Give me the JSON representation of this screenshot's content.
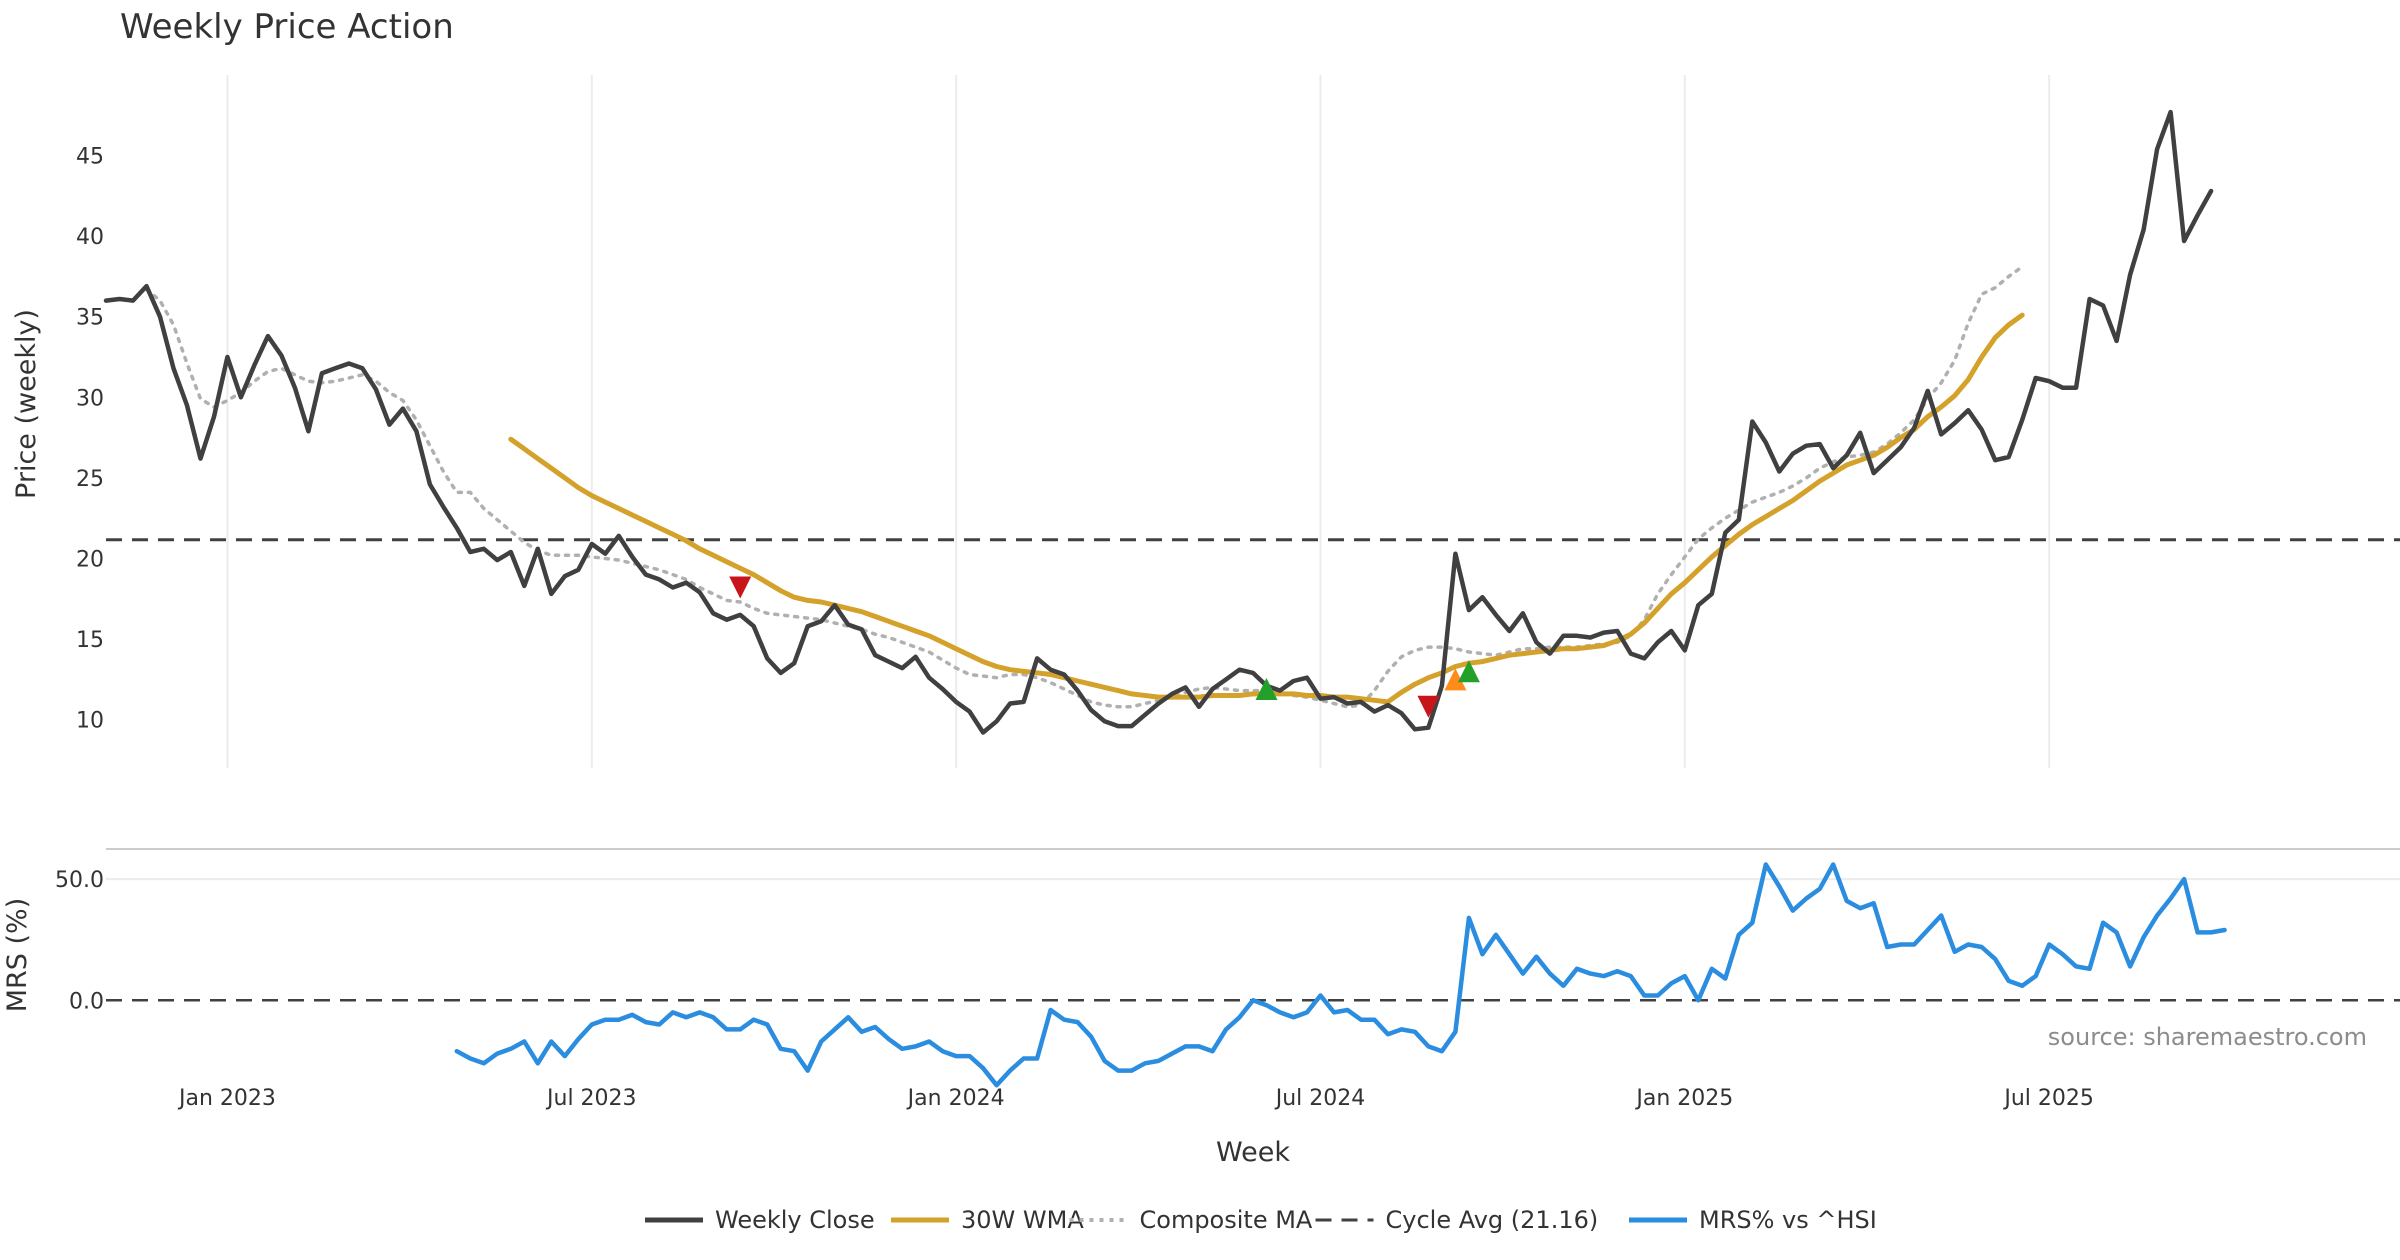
{
  "chart_data": [
    {
      "type": "line",
      "title": "Weekly Price Action",
      "ylabel": "Price (weekly)",
      "xlabel": "Week",
      "ylim": [
        7,
        50
      ],
      "yticks": [
        10,
        15,
        20,
        25,
        30,
        35,
        40,
        45
      ],
      "xlim": [
        0,
        170
      ],
      "x_ticks": [
        {
          "x": 9,
          "label": "Jan 2023"
        },
        {
          "x": 36,
          "label": "Jul 2023"
        },
        {
          "x": 63,
          "label": "Jan 2024"
        },
        {
          "x": 90,
          "label": "Jul 2024"
        },
        {
          "x": 117,
          "label": "Jan 2025"
        },
        {
          "x": 144,
          "label": "Jul 2025"
        }
      ],
      "hline": {
        "name": "Cycle Avg (21.16)",
        "value": 21.16
      },
      "series": [
        {
          "name": "Weekly Close",
          "color": "#404040",
          "start": 0,
          "values": [
            36.0,
            36.1,
            36.0,
            36.9,
            35.0,
            31.8,
            29.5,
            26.2,
            28.8,
            32.5,
            30.0,
            32.0,
            33.8,
            32.6,
            30.6,
            27.9,
            31.5,
            31.8,
            32.1,
            31.8,
            30.5,
            28.3,
            29.3,
            27.9,
            24.6,
            23.2,
            21.9,
            20.4,
            20.6,
            19.9,
            20.4,
            18.3,
            20.6,
            17.8,
            18.9,
            19.3,
            20.9,
            20.3,
            21.4,
            20.1,
            19.0,
            18.7,
            18.2,
            18.5,
            17.9,
            16.6,
            16.2,
            16.5,
            15.8,
            13.8,
            12.9,
            13.5,
            15.8,
            16.1,
            17.1,
            15.9,
            15.6,
            14.0,
            13.6,
            13.2,
            13.9,
            12.6,
            11.9,
            11.1,
            10.5,
            9.2,
            9.9,
            11.0,
            11.1,
            13.8,
            13.1,
            12.8,
            11.8,
            10.6,
            9.9,
            9.6,
            9.6,
            10.3,
            11.0,
            11.6,
            12.0,
            10.8,
            11.9,
            12.5,
            13.1,
            12.9,
            12.1,
            11.8,
            12.4,
            12.6,
            11.3,
            11.4,
            11.0,
            11.1,
            10.5,
            10.9,
            10.4,
            9.4,
            9.5,
            12.1,
            20.3,
            16.8,
            17.6,
            16.5,
            15.5,
            16.6,
            14.8,
            14.1,
            15.2,
            15.2,
            15.1,
            15.4,
            15.5,
            14.1,
            13.8,
            14.8,
            15.5,
            14.3,
            17.1,
            17.8,
            21.6,
            22.4,
            28.5,
            27.2,
            25.4,
            26.5,
            27.0,
            27.1,
            25.6,
            26.4,
            27.8,
            25.3,
            26.1,
            26.9,
            28.1,
            30.4,
            27.7,
            28.4,
            29.2,
            28.0,
            26.1,
            26.3,
            28.6,
            31.2,
            31.0,
            30.6,
            30.6,
            36.1,
            35.7,
            33.5,
            37.6,
            40.4,
            45.4,
            47.7,
            39.7,
            41.3,
            42.8
          ]
        },
        {
          "name": "30W WMA",
          "color": "#d4a12a",
          "start": 30,
          "values": [
            27.4,
            26.8,
            26.2,
            25.6,
            25.0,
            24.4,
            23.9,
            23.5,
            23.1,
            22.7,
            22.3,
            21.9,
            21.5,
            21.1,
            20.6,
            20.2,
            19.8,
            19.4,
            19.0,
            18.5,
            18.0,
            17.6,
            17.4,
            17.3,
            17.1,
            16.9,
            16.7,
            16.4,
            16.1,
            15.8,
            15.5,
            15.2,
            14.8,
            14.4,
            14.0,
            13.6,
            13.3,
            13.1,
            13.0,
            12.9,
            12.8,
            12.6,
            12.4,
            12.2,
            12.0,
            11.8,
            11.6,
            11.5,
            11.4,
            11.4,
            11.4,
            11.4,
            11.5,
            11.5,
            11.5,
            11.6,
            11.6,
            11.6,
            11.6,
            11.5,
            11.5,
            11.4,
            11.4,
            11.3,
            11.2,
            11.1,
            11.7,
            12.2,
            12.6,
            12.9,
            13.3,
            13.5,
            13.6,
            13.8,
            14.0,
            14.1,
            14.2,
            14.3,
            14.4,
            14.4,
            14.5,
            14.6,
            14.9,
            15.3,
            16.0,
            16.9,
            17.8,
            18.5,
            19.3,
            20.1,
            20.8,
            21.5,
            22.1,
            22.6,
            23.1,
            23.6,
            24.2,
            24.8,
            25.3,
            25.8,
            26.1,
            26.4,
            26.9,
            27.5,
            28.0,
            28.8,
            29.4,
            30.1,
            31.1,
            32.5,
            33.7,
            34.5,
            35.1
          ]
        },
        {
          "name": "Composite MA",
          "color": "#b0b0b0",
          "start": 3,
          "values": [
            36.7,
            36.0,
            34.5,
            32.1,
            29.9,
            29.4,
            29.8,
            30.3,
            31.0,
            31.6,
            31.8,
            31.4,
            31.0,
            30.9,
            31.0,
            31.2,
            31.4,
            31.0,
            30.3,
            29.8,
            28.6,
            27.0,
            25.4,
            24.1,
            24.1,
            23.1,
            22.4,
            21.7,
            21.0,
            20.5,
            20.2,
            20.2,
            20.2,
            20.1,
            20.0,
            19.9,
            19.7,
            19.5,
            19.3,
            19.0,
            18.7,
            18.2,
            17.8,
            17.4,
            17.3,
            16.9,
            16.6,
            16.5,
            16.4,
            16.3,
            16.2,
            16.0,
            15.8,
            15.6,
            15.3,
            15.1,
            14.8,
            14.5,
            14.2,
            13.7,
            13.2,
            12.8,
            12.7,
            12.6,
            12.8,
            12.8,
            12.6,
            12.3,
            11.9,
            11.5,
            11.1,
            10.9,
            10.8,
            10.8,
            11.0,
            11.2,
            11.4,
            11.7,
            11.9,
            12.0,
            11.9,
            11.8,
            11.8,
            11.8,
            11.7,
            11.5,
            11.4,
            11.2,
            11.0,
            10.8,
            10.9,
            11.8,
            13.0,
            13.9,
            14.3,
            14.5,
            14.5,
            14.4,
            14.2,
            14.1,
            14.0,
            14.2,
            14.4,
            14.4,
            14.5,
            14.5,
            14.5,
            14.6,
            14.7,
            14.8,
            15.2,
            16.2,
            17.8,
            19.0,
            20.1,
            21.2,
            21.9,
            22.5,
            23.0,
            23.5,
            23.8,
            24.1,
            24.5,
            25.0,
            25.6,
            26.0,
            26.3,
            26.4,
            26.6,
            27.1,
            27.8,
            28.6,
            29.9,
            30.9,
            32.3,
            34.6,
            36.4,
            36.8,
            37.5,
            38.1
          ]
        }
      ],
      "markers": [
        {
          "type": "sell",
          "x": 47,
          "y": 18.2,
          "color": "#c8151b"
        },
        {
          "type": "buy",
          "x": 86,
          "y": 11.9,
          "color": "#22a02a"
        },
        {
          "type": "sell",
          "x": 98,
          "y": 10.8,
          "color": "#c8151b"
        },
        {
          "type": "early-buy",
          "x": 100,
          "y": 12.5,
          "color": "#ff8c1a"
        },
        {
          "type": "buy",
          "x": 101,
          "y": 13.0,
          "color": "#22a02a"
        }
      ]
    },
    {
      "type": "line",
      "title": "",
      "ylabel": "MRS (%)",
      "xlabel": "Week",
      "ylim": [
        -37,
        62
      ],
      "yticks": [
        {
          "value": 50,
          "label": "50.0"
        },
        {
          "value": 0,
          "label": "0.0"
        }
      ],
      "hline": {
        "name": "zero",
        "value": 0
      },
      "series": [
        {
          "name": "MRS% vs ^HSI",
          "color": "#2b8de0",
          "start": 26,
          "values": [
            -21,
            -24,
            -26,
            -22,
            -20,
            -17,
            -26,
            -17,
            -23,
            -16,
            -10,
            -8,
            -8,
            -6,
            -9,
            -10,
            -5,
            -7,
            -5,
            -7,
            -12,
            -12,
            -8,
            -10,
            -20,
            -21,
            -29,
            -17,
            -12,
            -7,
            -13,
            -11,
            -16,
            -20,
            -19,
            -17,
            -21,
            -23,
            -23,
            -28,
            -35,
            -29,
            -24,
            -24,
            -4,
            -8,
            -9,
            -15,
            -25,
            -29,
            -29,
            -26,
            -25,
            -22,
            -19,
            -19,
            -21,
            -12,
            -7,
            0,
            -2,
            -5,
            -7,
            -5,
            2,
            -5,
            -4,
            -8,
            -8,
            -14,
            -12,
            -13,
            -19,
            -21,
            -13,
            34,
            19,
            27,
            19,
            11,
            18,
            11,
            6,
            13,
            11,
            10,
            12,
            10,
            2,
            2,
            7,
            10,
            0,
            13,
            9,
            27,
            32,
            56,
            47,
            37,
            42,
            46,
            56,
            41,
            38,
            40,
            22,
            23,
            23,
            29,
            35,
            20,
            23,
            22,
            17,
            8,
            6,
            10,
            23,
            19,
            14,
            13,
            32,
            28,
            14,
            26,
            35,
            42,
            50,
            28,
            28,
            29
          ]
        }
      ]
    }
  ],
  "legend": [
    {
      "label": "Weekly Close",
      "style": "solid",
      "color": "#404040"
    },
    {
      "label": "30W WMA",
      "style": "solid",
      "color": "#d4a12a"
    },
    {
      "label": "Composite MA",
      "style": "dotted",
      "color": "#b0b0b0"
    },
    {
      "label": "Cycle Avg (21.16)",
      "style": "dashed",
      "color": "#404040"
    },
    {
      "label": "MRS% vs ^HSI",
      "style": "solid",
      "color": "#2b8de0"
    }
  ],
  "source": "source: sharemaestro.com"
}
